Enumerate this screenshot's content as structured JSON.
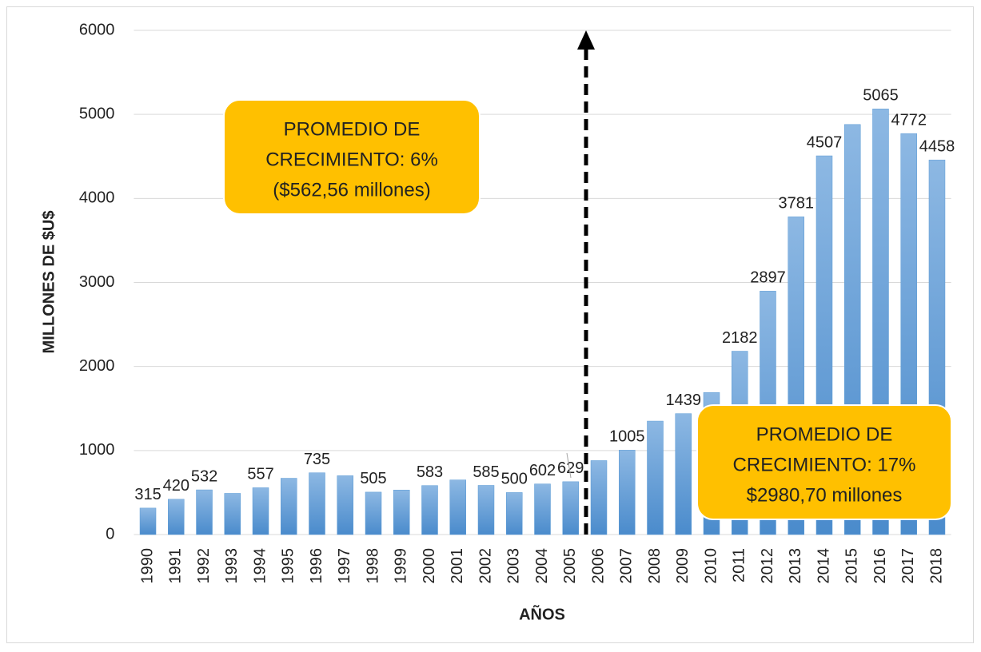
{
  "chart_data": {
    "type": "bar",
    "x_label": "AÑOS",
    "y_label": "MILLONES DE $U$",
    "categories": [
      "1990",
      "1991",
      "1992",
      "1993",
      "1994",
      "1995",
      "1996",
      "1997",
      "1998",
      "1999",
      "2000",
      "2001",
      "2002",
      "2003",
      "2004",
      "2005",
      "2006",
      "2007",
      "2008",
      "2009",
      "2010",
      "2011",
      "2012",
      "2013",
      "2014",
      "2015",
      "2016",
      "2017",
      "2018"
    ],
    "values": [
      315,
      420,
      532,
      490,
      557,
      670,
      735,
      700,
      505,
      530,
      583,
      650,
      585,
      500,
      602,
      629,
      880,
      1005,
      1350,
      1439,
      1690,
      2182,
      2897,
      3781,
      4507,
      4880,
      5065,
      4772,
      4458
    ],
    "value_labels": [
      "315",
      "420",
      "532",
      null,
      "557",
      null,
      "735",
      null,
      "505",
      null,
      "583",
      null,
      "585",
      "500",
      "602",
      "629",
      null,
      "1005",
      null,
      "1439",
      null,
      "2182",
      "2897",
      "3781",
      "4507",
      null,
      "5065",
      "4772",
      "4458"
    ],
    "color": "#5b9bd5",
    "ylim": [
      0,
      6000
    ],
    "yticks": [
      0,
      1000,
      2000,
      3000,
      4000,
      5000,
      6000
    ],
    "grid": true,
    "annotations": [
      {
        "lines": [
          "PROMEDIO DE",
          "CRECIMIENTO: 6%",
          "($562,56 millones)"
        ],
        "color": "#ffc000"
      },
      {
        "lines": [
          "PROMEDIO DE",
          "CRECIMIENTO: 17%",
          "$2980,70 millones"
        ],
        "color": "#ffc000"
      }
    ]
  }
}
